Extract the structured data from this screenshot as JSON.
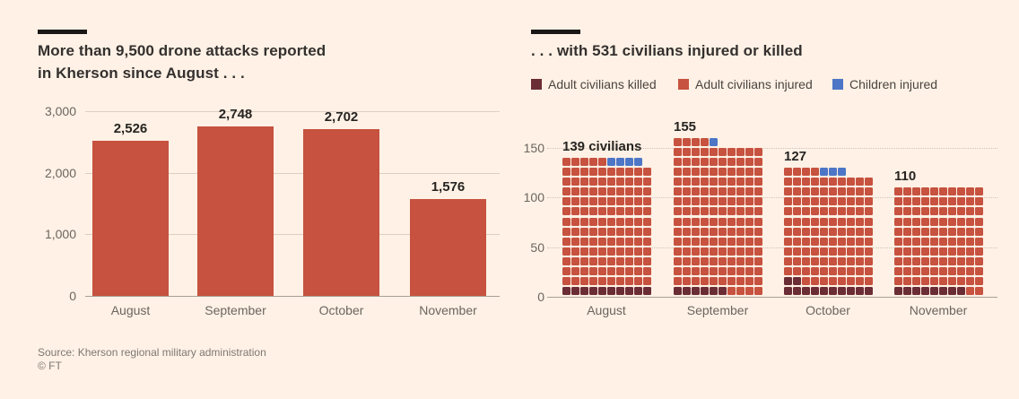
{
  "left_panel": {
    "title_line1": "More than 9,500 drone attacks reported",
    "title_line2": "in Kherson since August . . ."
  },
  "right_panel": {
    "title": ". . . with 531 civilians injured or killed"
  },
  "footer": {
    "source": "Source: Kherson regional military administration",
    "copyright": "© FT"
  },
  "colors": {
    "background": "#FFF1E5",
    "bar_red": "#C6523F",
    "killed_dark": "#6B2D35",
    "injured_red": "#C6523F",
    "children_blue": "#4D76C6",
    "title_text": "#33302E",
    "axis_text": "#6B6560",
    "grid_line": "#DDD0C3",
    "axis_line": "#A89E95",
    "kicker_black": "#1A1817",
    "source_text": "#7E7873"
  },
  "chart_data": [
    {
      "type": "bar",
      "title": "More than 9,500 drone attacks reported in Kherson since August . . .",
      "categories": [
        "August",
        "September",
        "October",
        "November"
      ],
      "values": [
        2526,
        2748,
        2702,
        1576
      ],
      "value_labels": [
        "2,526",
        "2,748",
        "2,702",
        "1,576"
      ],
      "xlabel": "",
      "ylabel": "",
      "ylim": [
        0,
        3000
      ],
      "ytick_values": [
        0,
        1000,
        2000,
        3000
      ],
      "ytick_labels": [
        "0",
        "1,000",
        "2,000",
        "3,000"
      ],
      "grid": true,
      "bar_color": "#C6523F"
    },
    {
      "type": "waffle",
      "title": ". . . with 531 civilians injured or killed",
      "total": 531,
      "unit_per_square": 1,
      "squares_per_row": 10,
      "categories": [
        "August",
        "September",
        "October",
        "November"
      ],
      "series": [
        {
          "name": "Adult civilians killed",
          "color": "#6B2D35",
          "values": [
            10,
            6,
            12,
            8
          ]
        },
        {
          "name": "Adult civilians injured",
          "color": "#C6523F",
          "values": [
            125,
            148,
            112,
            102
          ]
        },
        {
          "name": "Children injured",
          "color": "#4D76C6",
          "values": [
            4,
            1,
            3,
            0
          ]
        }
      ],
      "month_totals": [
        139,
        155,
        127,
        110
      ],
      "month_total_labels": [
        "139 civilians",
        "155",
        "127",
        "110"
      ],
      "ylim": [
        0,
        160
      ],
      "ytick_values": [
        0,
        50,
        100,
        150
      ],
      "ytick_labels": [
        "0",
        "50",
        "100",
        "150"
      ],
      "grid": true,
      "legend_position": "top"
    }
  ]
}
